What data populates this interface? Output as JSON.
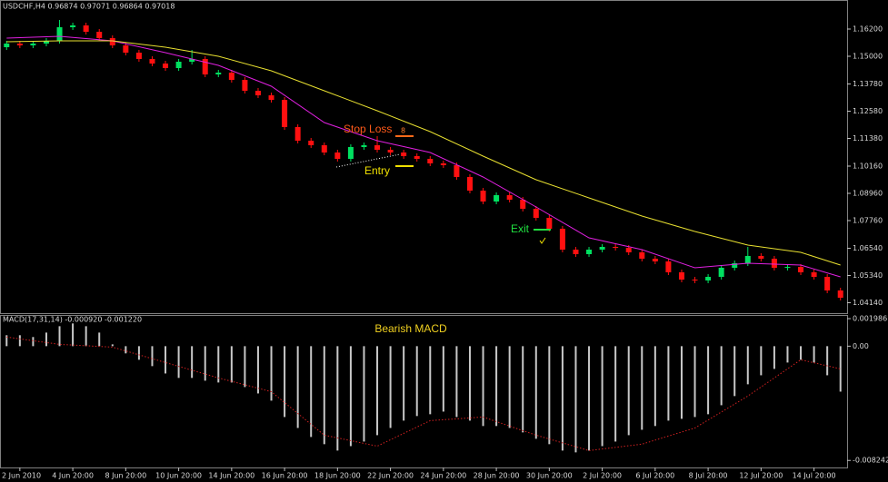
{
  "chart_data": [
    {
      "type": "candlestick",
      "title": "USDCHF,H4  0.96874 0.97071 0.96864 0.97018",
      "annotations": [
        "Stop Loss",
        "8",
        "Entry",
        "Exit"
      ],
      "xlim": [
        -0.5,
        63.5
      ],
      "ylim": [
        1.0368,
        1.1748
      ],
      "yticks": [
        {
          "value": 1.162,
          "label": "1.16200"
        },
        {
          "value": 1.15,
          "label": "1.15000"
        },
        {
          "value": 1.1378,
          "label": "1.13780"
        },
        {
          "value": 1.1258,
          "label": "1.12580"
        },
        {
          "value": 1.1138,
          "label": "1.11380"
        },
        {
          "value": 1.1016,
          "label": "1.10160"
        },
        {
          "value": 1.0896,
          "label": "1.08960"
        },
        {
          "value": 1.0776,
          "label": "1.07760"
        },
        {
          "value": 1.0654,
          "label": "1.06540"
        },
        {
          "value": 1.0534,
          "label": "1.05340"
        },
        {
          "value": 1.0414,
          "label": "1.04140"
        }
      ],
      "up_color": "#00e060",
      "down_color": "#ff1010",
      "open": [
        1.154,
        1.1556,
        1.1548,
        1.1556,
        1.1568,
        1.1628,
        1.1636,
        1.1608,
        1.158,
        1.1548,
        1.1516,
        1.1488,
        1.1468,
        1.1448,
        1.1476,
        1.1488,
        1.142,
        1.1428,
        1.1396,
        1.1348,
        1.1328,
        1.1308,
        1.1188,
        1.1128,
        1.1108,
        1.1076,
        1.1048,
        1.11,
        1.1108,
        1.1088,
        1.1076,
        1.106,
        1.1048,
        1.1028,
        1.102,
        1.0968,
        1.0908,
        1.086,
        1.0888,
        1.0868,
        1.0828,
        1.0788,
        1.074,
        1.0648,
        1.0628,
        1.0648,
        1.066,
        1.0656,
        1.0636,
        1.0608,
        1.0596,
        1.0548,
        1.0516,
        1.0512,
        1.0528,
        1.0568,
        1.0588,
        1.062,
        1.0608,
        1.0568,
        1.0572,
        1.0548,
        1.0528,
        1.0468
      ],
      "high": [
        1.1568,
        1.1568,
        1.1568,
        1.158,
        1.166,
        1.1648,
        1.1648,
        1.162,
        1.1592,
        1.156,
        1.1528,
        1.15,
        1.148,
        1.1488,
        1.1528,
        1.15,
        1.144,
        1.144,
        1.1408,
        1.136,
        1.134,
        1.132,
        1.12,
        1.114,
        1.112,
        1.1088,
        1.1112,
        1.112,
        1.1148,
        1.11,
        1.1088,
        1.1072,
        1.106,
        1.104,
        1.1032,
        1.098,
        1.092,
        1.09,
        1.09,
        1.088,
        1.084,
        1.08,
        1.0752,
        1.066,
        1.066,
        1.0672,
        1.0672,
        1.0668,
        1.0648,
        1.062,
        1.0608,
        1.056,
        1.0528,
        1.054,
        1.058,
        1.06,
        1.066,
        1.0632,
        1.062,
        1.0584,
        1.0584,
        1.056,
        1.054,
        1.048
      ],
      "low": [
        1.1528,
        1.1536,
        1.1536,
        1.1544,
        1.1556,
        1.1616,
        1.1596,
        1.1568,
        1.1536,
        1.1504,
        1.1476,
        1.1456,
        1.1436,
        1.1436,
        1.1464,
        1.1408,
        1.1408,
        1.1384,
        1.1336,
        1.1316,
        1.1296,
        1.1176,
        1.1116,
        1.1096,
        1.1064,
        1.1036,
        1.1036,
        1.1088,
        1.1076,
        1.1064,
        1.1048,
        1.1036,
        1.1016,
        1.1008,
        1.0956,
        1.0896,
        1.0848,
        1.0848,
        1.0856,
        1.0816,
        1.0776,
        1.0728,
        1.0636,
        1.0616,
        1.0616,
        1.0636,
        1.0644,
        1.0624,
        1.0596,
        1.0584,
        1.0536,
        1.0504,
        1.05,
        1.05,
        1.0516,
        1.0556,
        1.0576,
        1.0596,
        1.0556,
        1.0556,
        1.0536,
        1.0516,
        1.0456,
        1.0424
      ],
      "close": [
        1.1556,
        1.1548,
        1.1556,
        1.1568,
        1.1628,
        1.1636,
        1.1608,
        1.158,
        1.1548,
        1.1516,
        1.1488,
        1.1468,
        1.1448,
        1.1476,
        1.1488,
        1.142,
        1.1428,
        1.1396,
        1.1348,
        1.1328,
        1.1308,
        1.1188,
        1.1128,
        1.1108,
        1.1076,
        1.1048,
        1.11,
        1.1108,
        1.1088,
        1.1076,
        1.106,
        1.1048,
        1.1028,
        1.102,
        1.0968,
        1.0908,
        1.086,
        1.0888,
        1.0868,
        1.0828,
        1.0788,
        1.074,
        1.0648,
        1.0628,
        1.0648,
        1.066,
        1.0656,
        1.0636,
        1.0608,
        1.0596,
        1.0548,
        1.0516,
        1.0512,
        1.0528,
        1.0568,
        1.0588,
        1.062,
        1.0608,
        1.0568,
        1.0572,
        1.0548,
        1.0528,
        1.0468,
        1.0436
      ],
      "series": [
        {
          "color": "#e020e0",
          "x": [
            0,
            4,
            8,
            12,
            16,
            20,
            24,
            28,
            32,
            36,
            40,
            44,
            48,
            52,
            56,
            60,
            63
          ],
          "values": [
            1.158,
            1.1588,
            1.1568,
            1.1516,
            1.146,
            1.1368,
            1.1208,
            1.1128,
            1.1076,
            1.0968,
            1.0836,
            1.07,
            1.0648,
            1.0568,
            1.0588,
            1.058,
            1.0528
          ]
        },
        {
          "color": "#e8e030",
          "x": [
            0,
            4,
            8,
            12,
            16,
            20,
            24,
            28,
            32,
            36,
            40,
            44,
            48,
            52,
            56,
            60,
            63
          ],
          "values": [
            1.1564,
            1.1568,
            1.1568,
            1.154,
            1.15,
            1.1436,
            1.1348,
            1.126,
            1.1168,
            1.106,
            1.0956,
            1.0876,
            1.0796,
            1.0728,
            1.0668,
            1.0636,
            1.058
          ]
        }
      ]
    },
    {
      "type": "bar",
      "title": "MACD(17,31,14) -0.000920 -0.001220",
      "annotation": "Bearish MACD",
      "xlim": [
        -0.5,
        63.5
      ],
      "ylim": [
        -0.00875,
        0.00225
      ],
      "yticks": [
        0.001986,
        {
          "value": 0,
          "label": "0.00"
        },
        -0.008242
      ],
      "xticks": [
        {
          "value": 1,
          "label": "2 Jun 2010"
        },
        {
          "value": 5,
          "label": "4 Jun 20:00"
        },
        {
          "value": 9,
          "label": "8 Jun 20:00"
        },
        {
          "value": 13,
          "label": "10 Jun 20:00"
        },
        {
          "value": 17,
          "label": "14 Jun 20:00"
        },
        {
          "value": 21,
          "label": "16 Jun 20:00"
        },
        {
          "value": 25,
          "label": "18 Jun 20:00"
        },
        {
          "value": 29,
          "label": "22 Jun 20:00"
        },
        {
          "value": 33,
          "label": "24 Jun 20:00"
        },
        {
          "value": 37,
          "label": "28 Jun 20:00"
        },
        {
          "value": 41,
          "label": "30 Jun 20:00"
        },
        {
          "value": 45,
          "label": "2 Jul 20:00"
        },
        {
          "value": 49,
          "label": "6 Jul 20:00"
        },
        {
          "value": 53,
          "label": "8 Jul 20:00"
        },
        {
          "value": 57,
          "label": "12 Jul 20:00"
        },
        {
          "value": 61,
          "label": "14 Jul 20:00"
        }
      ],
      "color": "#c8c8c8",
      "values": [
        0.00079,
        0.00079,
        0.00066,
        0.00098,
        0.00144,
        0.00164,
        0.00144,
        0.00098,
        0.00013,
        -0.00052,
        -0.00098,
        -0.00144,
        -0.00197,
        -0.00229,
        -0.00229,
        -0.00249,
        -0.00262,
        -0.00262,
        -0.00295,
        -0.00341,
        -0.00393,
        -0.00511,
        -0.0059,
        -0.00655,
        -0.00707,
        -0.00753,
        -0.00721,
        -0.00688,
        -0.00642,
        -0.0059,
        -0.00537,
        -0.00504,
        -0.00491,
        -0.00472,
        -0.00511,
        -0.00537,
        -0.00576,
        -0.00576,
        -0.0059,
        -0.00622,
        -0.00668,
        -0.00707,
        -0.00753,
        -0.00766,
        -0.00753,
        -0.00721,
        -0.00688,
        -0.00642,
        -0.00603,
        -0.00576,
        -0.00537,
        -0.00524,
        -0.00511,
        -0.00491,
        -0.00426,
        -0.0036,
        -0.00275,
        -0.0021,
        -0.00164,
        -0.00118,
        -0.00098,
        -0.00118,
        -0.0021,
        -0.00328
      ],
      "series": [
        {
          "color": "#d02020",
          "dotted": true,
          "x": [
            0,
            4,
            8,
            12,
            16,
            20,
            24,
            28,
            32,
            36,
            40,
            44,
            48,
            52,
            56,
            60,
            63
          ],
          "values": [
            0.00066,
            0.00013,
            -7e-05,
            -0.00118,
            -0.00229,
            -0.00328,
            -0.00642,
            -0.00721,
            -0.00537,
            -0.00511,
            -0.00642,
            -0.00753,
            -0.00707,
            -0.0059,
            -0.0036,
            -0.00098,
            -0.00164
          ]
        }
      ]
    }
  ]
}
